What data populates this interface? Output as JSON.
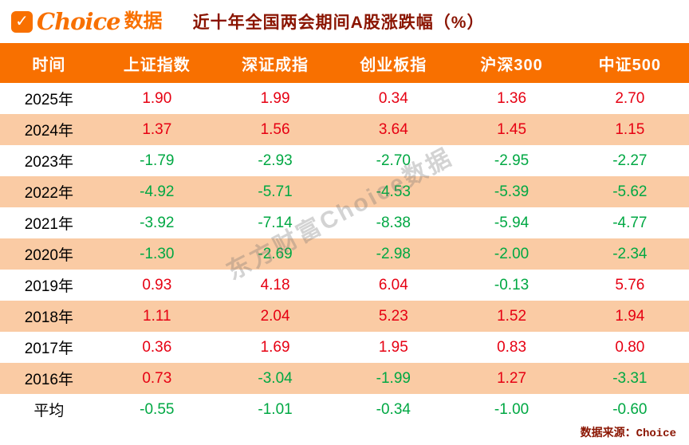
{
  "header": {
    "logo_text": "Choice",
    "logo_suffix": "数据"
  },
  "chart_data": {
    "type": "table",
    "title": "近十年全国两会期间A股涨跌幅（%）",
    "columns": [
      "时间",
      "上证指数",
      "深证成指",
      "创业板指",
      "沪深300",
      "中证500"
    ],
    "rows": [
      {
        "label": "2025年",
        "values": [
          "1.90",
          "1.99",
          "0.34",
          "1.36",
          "2.70"
        ]
      },
      {
        "label": "2024年",
        "values": [
          "1.37",
          "1.56",
          "3.64",
          "1.45",
          "1.15"
        ]
      },
      {
        "label": "2023年",
        "values": [
          "-1.79",
          "-2.93",
          "-2.70",
          "-2.95",
          "-2.27"
        ]
      },
      {
        "label": "2022年",
        "values": [
          "-4.92",
          "-5.71",
          "-4.53",
          "-5.39",
          "-5.62"
        ]
      },
      {
        "label": "2021年",
        "values": [
          "-3.92",
          "-7.14",
          "-8.38",
          "-5.94",
          "-4.77"
        ]
      },
      {
        "label": "2020年",
        "values": [
          "-1.30",
          "-2.69",
          "-2.98",
          "-2.00",
          "-2.34"
        ]
      },
      {
        "label": "2019年",
        "values": [
          "0.93",
          "4.18",
          "6.04",
          "-0.13",
          "5.76"
        ]
      },
      {
        "label": "2018年",
        "values": [
          "1.11",
          "2.04",
          "5.23",
          "1.52",
          "1.94"
        ]
      },
      {
        "label": "2017年",
        "values": [
          "0.36",
          "1.69",
          "1.95",
          "0.83",
          "0.80"
        ]
      },
      {
        "label": "2016年",
        "values": [
          "0.73",
          "-3.04",
          "-1.99",
          "1.27",
          "-3.31"
        ]
      },
      {
        "label": "平均",
        "values": [
          "-0.55",
          "-1.01",
          "-0.34",
          "-1.00",
          "-0.60"
        ]
      }
    ],
    "positive_color": "#E60012",
    "negative_color": "#00A843"
  },
  "watermark": "东方财富Choice数据",
  "footer": {
    "source": "数据来源：Choice"
  },
  "colors": {
    "header_orange": "#F87000",
    "stripe_peach": "#FACBA4",
    "title_maroon": "#8A1400"
  }
}
